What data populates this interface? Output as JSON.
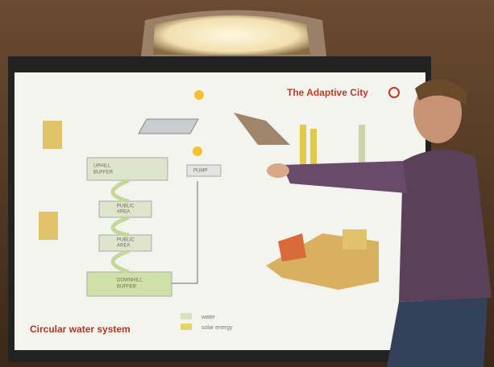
{
  "slide": {
    "title": "The Adaptive City",
    "caption": "Circular water system",
    "diagram": {
      "nodes": [
        {
          "lines": [
            "UPHILL",
            "BUFFER"
          ]
        },
        {
          "lines": [
            "PUMP"
          ]
        },
        {
          "lines": [
            "PUBLIC",
            "AREA"
          ]
        },
        {
          "lines": [
            "PUBLIC",
            "AREA"
          ]
        },
        {
          "lines": [
            "DOWNHILL",
            "BUFFER"
          ]
        }
      ]
    },
    "legend": [
      {
        "label": "water"
      },
      {
        "label": "solar energy"
      }
    ]
  }
}
